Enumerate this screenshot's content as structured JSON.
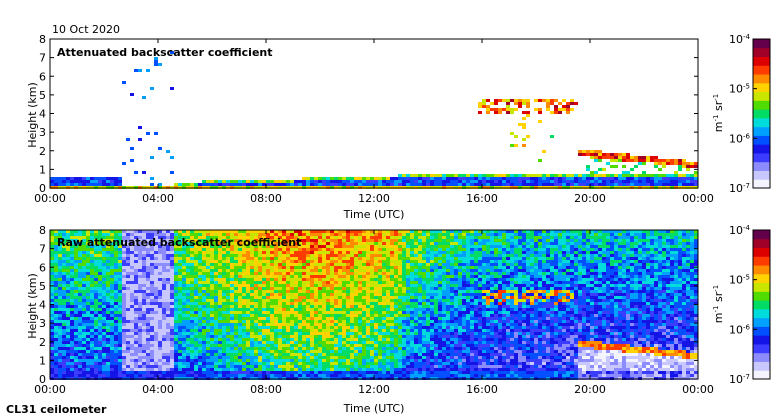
{
  "figure": {
    "date": "10 Oct 2020",
    "footer": "CL31 ceilometer"
  },
  "colors": {
    "colormap": [
      "#f4f4ff",
      "#c8c8ff",
      "#8c8cff",
      "#3c3cff",
      "#1414e6",
      "#0050ff",
      "#00a0ff",
      "#00dcdc",
      "#00dc64",
      "#50dc00",
      "#c8e600",
      "#ffd200",
      "#ff8c00",
      "#ff3c00",
      "#dc0000",
      "#a00028",
      "#64004b"
    ],
    "axis": "#000000"
  },
  "chart_data": [
    {
      "type": "heatmap",
      "title": "Attenuated backscatter coefficient",
      "xlabel": "Time (UTC)",
      "ylabel": "Height (km)",
      "xlim": [
        "00:00",
        "24:00"
      ],
      "ylim": [
        0,
        8
      ],
      "x_ticks": [
        "00:00",
        "04:00",
        "08:00",
        "12:00",
        "16:00",
        "20:00",
        "00:00"
      ],
      "y_ticks": [
        "0",
        "1",
        "2",
        "3",
        "4",
        "5",
        "6",
        "7",
        "8"
      ],
      "colorbar": {
        "label_base": "m",
        "label_exp1": "-1",
        "label_mid": " sr",
        "label_exp2": "-1",
        "scale": "log",
        "range": [
          1e-07,
          0.0001
        ],
        "ticks": [
          {
            "value": 1e-07,
            "base": "10",
            "exp": "-7"
          },
          {
            "value": 1e-06,
            "base": "10",
            "exp": "-6"
          },
          {
            "value": 1e-05,
            "base": "10",
            "exp": "-5"
          },
          {
            "value": 0.0001,
            "base": "10",
            "exp": "-4"
          }
        ]
      },
      "features": [
        {
          "name": "boundary layer",
          "time_start_h": 0.0,
          "time_end_h": 24.0,
          "height_km": [
            0.0,
            0.6
          ]
        },
        {
          "name": "vertical streaks",
          "time_start_h": 2.6,
          "time_end_h": 4.6,
          "height_km": [
            0.3,
            7.3
          ]
        },
        {
          "name": "cloud layer",
          "time_start_h": 15.8,
          "time_end_h": 19.6,
          "height_km": [
            3.8,
            4.9
          ]
        },
        {
          "name": "low cloud",
          "time_start_h": 19.6,
          "time_end_h": 24.0,
          "height_km": [
            1.0,
            2.2
          ]
        }
      ]
    },
    {
      "type": "heatmap",
      "title": "Raw attenuated backscatter coefficient",
      "xlabel": "Time (UTC)",
      "ylabel": "Height (km)",
      "xlim": [
        "00:00",
        "24:00"
      ],
      "ylim": [
        0,
        8
      ],
      "x_ticks": [
        "00:00",
        "04:00",
        "08:00",
        "12:00",
        "16:00",
        "20:00",
        "00:00"
      ],
      "y_ticks": [
        "0",
        "1",
        "2",
        "3",
        "4",
        "5",
        "6",
        "7",
        "8"
      ],
      "colorbar": {
        "label_base": "m",
        "label_exp1": "-1",
        "label_mid": " sr",
        "label_exp2": "-1",
        "scale": "log",
        "range": [
          1e-07,
          0.0001
        ],
        "ticks": [
          {
            "value": 1e-07,
            "base": "10",
            "exp": "-7"
          },
          {
            "value": 1e-06,
            "base": "10",
            "exp": "-6"
          },
          {
            "value": 1e-05,
            "base": "10",
            "exp": "-5"
          },
          {
            "value": 0.0001,
            "base": "10",
            "exp": "-4"
          }
        ]
      },
      "features": [
        {
          "name": "noise field",
          "time_start_h": 0.0,
          "time_end_h": 24.0,
          "height_km": [
            0.0,
            8.0
          ]
        },
        {
          "name": "low-noise column",
          "time_start_h": 2.6,
          "time_end_h": 4.6,
          "height_km": [
            0.0,
            8.0
          ]
        },
        {
          "name": "cloud layer",
          "time_start_h": 15.8,
          "time_end_h": 19.6,
          "height_km": [
            3.8,
            4.9
          ]
        },
        {
          "name": "low cloud",
          "time_start_h": 19.6,
          "time_end_h": 24.0,
          "height_km": [
            1.0,
            2.2
          ]
        }
      ]
    }
  ]
}
